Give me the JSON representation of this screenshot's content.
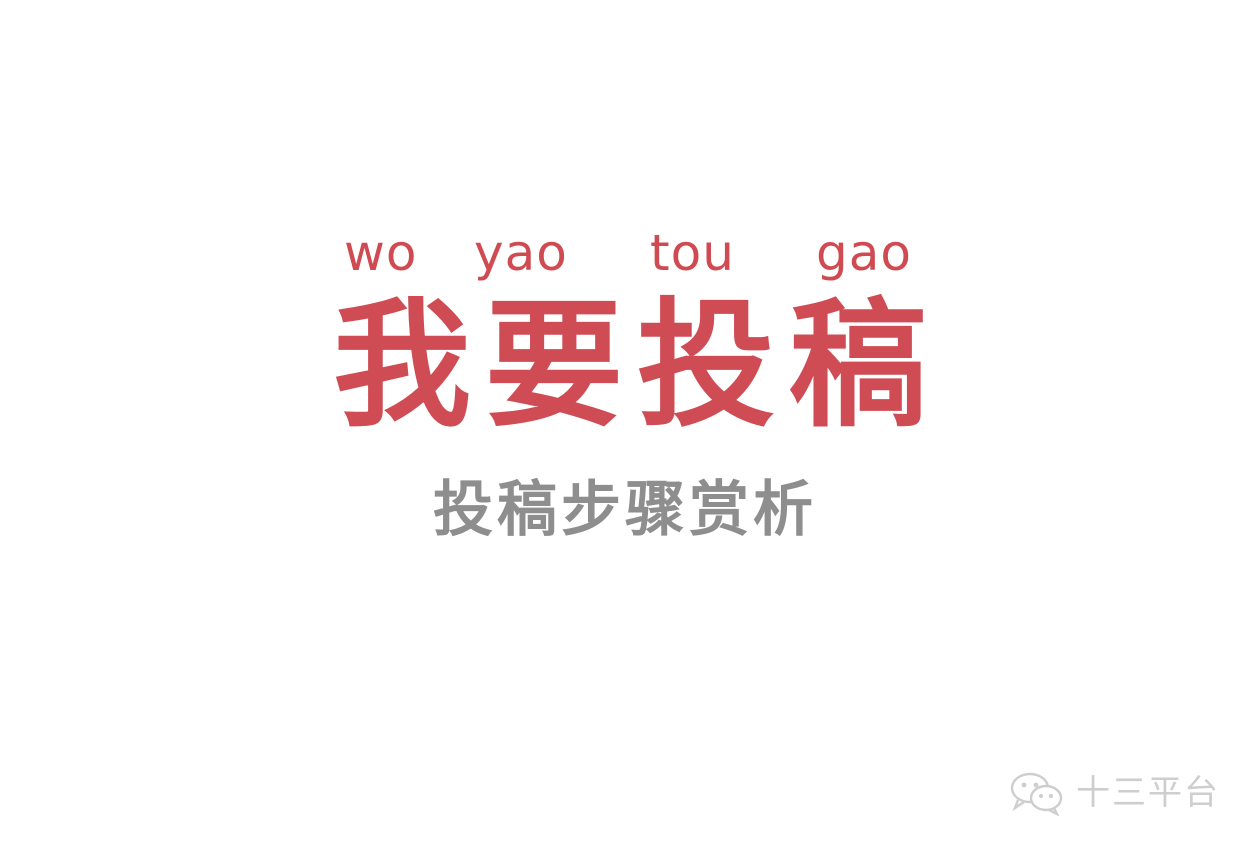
{
  "pinyin": [
    "wo",
    "yao",
    "tou",
    "gao"
  ],
  "title_chars": [
    "我",
    "要",
    "投",
    "稿"
  ],
  "subtitle": "投稿步骤赏析",
  "watermark": {
    "icon": "wechat-icon",
    "text": "十三平台"
  },
  "colors": {
    "accent": "#cf4c55",
    "subtitle": "#8e8e8e",
    "watermark": "#c9c9c9",
    "background": "#ffffff"
  }
}
